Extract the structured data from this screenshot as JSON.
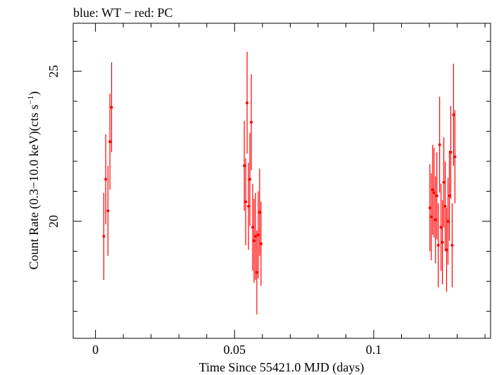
{
  "chart_data": {
    "type": "scatter",
    "title": "blue: WT − red: PC",
    "xlabel": "Time Since 55421.0 MJD (days)",
    "ylabel_main": "Count Rate (0.3−10.0 keV)(cts s",
    "ylabel_sup": "−1",
    "ylabel_end": ")",
    "xlim": [
      -0.008,
      0.142
    ],
    "ylim": [
      16.1,
      26.6
    ],
    "x_ticks": [
      0,
      0.05,
      0.1
    ],
    "x_tick_labels": [
      "0",
      "0.05",
      "0.1"
    ],
    "y_ticks": [
      20,
      25
    ],
    "y_tick_labels": [
      "20",
      "25"
    ],
    "grid": false,
    "color": "#ff0000",
    "series": [
      {
        "points": [
          {
            "x": 0.003,
            "y": 19.5,
            "err": 1.45
          },
          {
            "x": 0.0037,
            "y": 21.4,
            "err": 1.5
          },
          {
            "x": 0.0045,
            "y": 20.35,
            "err": 1.5
          },
          {
            "x": 0.0052,
            "y": 22.65,
            "err": 1.6
          },
          {
            "x": 0.0058,
            "y": 23.8,
            "err": 1.5
          },
          {
            "x": 0.0535,
            "y": 21.85,
            "err": 1.5
          },
          {
            "x": 0.054,
            "y": 20.65,
            "err": 1.45
          },
          {
            "x": 0.0545,
            "y": 23.95,
            "err": 1.7
          },
          {
            "x": 0.055,
            "y": 20.5,
            "err": 1.45
          },
          {
            "x": 0.0555,
            "y": 21.4,
            "err": 1.55
          },
          {
            "x": 0.056,
            "y": 23.3,
            "err": 1.6
          },
          {
            "x": 0.0565,
            "y": 19.8,
            "err": 1.45
          },
          {
            "x": 0.057,
            "y": 19.35,
            "err": 1.4
          },
          {
            "x": 0.0575,
            "y": 19.5,
            "err": 1.45
          },
          {
            "x": 0.058,
            "y": 18.3,
            "err": 1.4
          },
          {
            "x": 0.0585,
            "y": 19.55,
            "err": 1.45
          },
          {
            "x": 0.059,
            "y": 20.3,
            "err": 1.45
          },
          {
            "x": 0.0595,
            "y": 19.25,
            "err": 1.4
          },
          {
            "x": 0.1202,
            "y": 20.45,
            "err": 1.45
          },
          {
            "x": 0.1207,
            "y": 20.15,
            "err": 1.45
          },
          {
            "x": 0.1212,
            "y": 21.05,
            "err": 1.5
          },
          {
            "x": 0.1217,
            "y": 20.95,
            "err": 1.5
          },
          {
            "x": 0.1222,
            "y": 20.05,
            "err": 1.45
          },
          {
            "x": 0.1227,
            "y": 20.85,
            "err": 1.45
          },
          {
            "x": 0.1232,
            "y": 19.2,
            "err": 1.4
          },
          {
            "x": 0.1237,
            "y": 22.55,
            "err": 1.6
          },
          {
            "x": 0.1242,
            "y": 19.8,
            "err": 1.45
          },
          {
            "x": 0.1247,
            "y": 19.3,
            "err": 1.4
          },
          {
            "x": 0.1252,
            "y": 21.3,
            "err": 1.5
          },
          {
            "x": 0.1257,
            "y": 20.5,
            "err": 1.5
          },
          {
            "x": 0.1262,
            "y": 19.05,
            "err": 1.4
          },
          {
            "x": 0.1267,
            "y": 20.0,
            "err": 1.45
          },
          {
            "x": 0.1272,
            "y": 20.85,
            "err": 1.5
          },
          {
            "x": 0.1277,
            "y": 22.3,
            "err": 1.55
          },
          {
            "x": 0.1282,
            "y": 19.2,
            "err": 1.4
          },
          {
            "x": 0.1287,
            "y": 23.55,
            "err": 1.7
          },
          {
            "x": 0.1292,
            "y": 22.15,
            "err": 1.55
          }
        ]
      }
    ]
  }
}
